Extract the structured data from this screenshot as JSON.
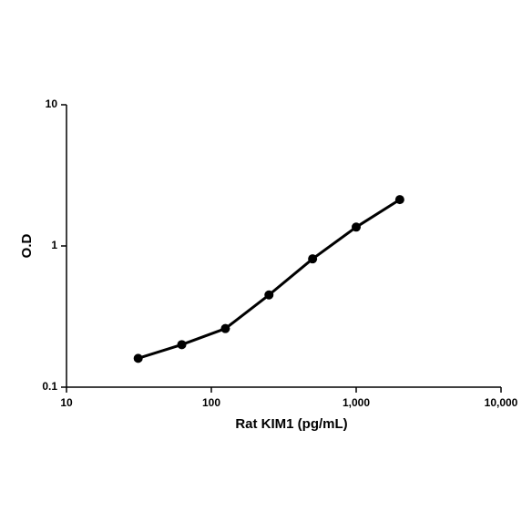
{
  "chart_data": {
    "type": "line",
    "x_label": "Rat KIM1 (pg/mL)",
    "y_label": "O.D",
    "x": [
      31.25,
      62.5,
      125,
      250,
      500,
      1000,
      2000
    ],
    "series": [
      {
        "name": "Rat KIM1",
        "color": "#000000",
        "values": [
          0.16,
          0.2,
          0.26,
          0.45,
          0.81,
          1.36,
          2.13
        ]
      }
    ],
    "x_log": true,
    "y_log": true,
    "xlim": [
      10,
      10000
    ],
    "ylim": [
      0.1,
      10
    ],
    "xticks": [
      10,
      100,
      {
        "value": 1000,
        "label": "1,000"
      },
      {
        "value": 10000,
        "label": "10,000"
      }
    ],
    "yticks": [
      0.1,
      1,
      10
    ]
  }
}
